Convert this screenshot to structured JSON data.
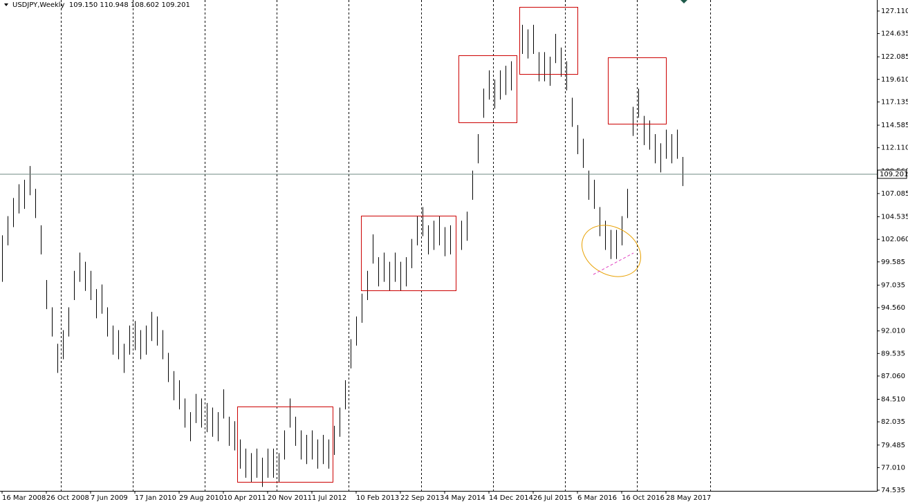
{
  "chart_data": {
    "type": "ohlc",
    "title": "USDJPY,Weekly  109.150 110.948 108.602 109.201",
    "color": "#000000",
    "current_price": 109.201,
    "categories": [
      "16 Mar 2008",
      null,
      null,
      null,
      null,
      null,
      null,
      null,
      "26 Oct 2008",
      null,
      null,
      null,
      null,
      null,
      null,
      null,
      "7 Jun 2009",
      null,
      null,
      null,
      null,
      null,
      null,
      null,
      "17 Jan 2010",
      null,
      null,
      null,
      null,
      null,
      null,
      null,
      "29 Aug 2010",
      null,
      null,
      null,
      null,
      null,
      null,
      null,
      "10 Apr 2011",
      null,
      null,
      null,
      null,
      null,
      null,
      null,
      "20 Nov 2011",
      null,
      null,
      null,
      null,
      null,
      null,
      null,
      "1 Jul 2012",
      null,
      null,
      null,
      null,
      null,
      null,
      null,
      "10 Feb 2013",
      null,
      null,
      null,
      null,
      null,
      null,
      null,
      "22 Sep 2013",
      null,
      null,
      null,
      null,
      null,
      null,
      null,
      "4 May 2014",
      null,
      null,
      null,
      null,
      null,
      null,
      null,
      "14 Dec 2014",
      null,
      null,
      null,
      null,
      null,
      null,
      null,
      "26 Jul 2015",
      null,
      null,
      null,
      null,
      null,
      null,
      null,
      "6 Mar 2016",
      null,
      null,
      null,
      null,
      null,
      null,
      null,
      "16 Oct 2016",
      null,
      null,
      null,
      null,
      null,
      null,
      null,
      "28 May 2017",
      null,
      null,
      null
    ],
    "high": [
      102.5,
      104.6,
      106.6,
      108.1,
      108.6,
      110.1,
      107.6,
      103.6,
      97.6,
      94.6,
      90.6,
      92.1,
      94.6,
      98.6,
      100.6,
      99.6,
      98.6,
      96.6,
      97.1,
      94.6,
      92.6,
      92.1,
      90.6,
      92.6,
      93.1,
      92.1,
      92.6,
      94.1,
      93.6,
      92.1,
      89.6,
      87.6,
      86.6,
      84.6,
      83.1,
      85.1,
      84.6,
      84.1,
      83.6,
      83.1,
      85.6,
      82.6,
      82.1,
      80.1,
      79.1,
      78.6,
      79.1,
      78.1,
      79.1,
      79.1,
      78.6,
      81.1,
      84.6,
      82.6,
      81.1,
      80.6,
      81.1,
      80.1,
      80.6,
      80.1,
      81.6,
      83.6,
      86.6,
      91.1,
      93.6,
      96.1,
      98.6,
      102.6,
      100.1,
      100.6,
      99.6,
      100.6,
      99.6,
      100.1,
      102.1,
      104.6,
      105.6,
      103.6,
      104.1,
      104.6,
      103.4,
      103.6,
      103.4,
      104.1,
      105.1,
      109.6,
      113.6,
      118.6,
      120.6,
      119.6,
      120.6,
      121.1,
      121.6,
      122.1,
      125.6,
      125.1,
      125.6,
      122.6,
      122.6,
      122.1,
      124.6,
      123.1,
      121.6,
      117.6,
      114.6,
      113.1,
      109.6,
      108.6,
      105.6,
      104.1,
      103.1,
      103.1,
      104.6,
      107.6,
      116.6,
      118.6,
      115.6,
      115.1,
      113.6,
      112.6,
      114.1,
      113.6,
      114.1,
      111.1
    ],
    "low": [
      97.4,
      101.4,
      103.4,
      104.9,
      105.4,
      106.9,
      104.4,
      100.4,
      94.4,
      91.4,
      87.4,
      88.9,
      91.4,
      95.4,
      97.4,
      96.4,
      95.4,
      93.4,
      93.9,
      91.4,
      89.4,
      88.9,
      87.4,
      89.4,
      89.9,
      88.9,
      89.4,
      90.9,
      90.4,
      88.9,
      86.4,
      84.4,
      83.4,
      81.4,
      79.9,
      81.9,
      81.4,
      80.9,
      80.4,
      79.9,
      82.4,
      79.4,
      78.9,
      76.9,
      75.9,
      75.4,
      75.9,
      74.9,
      75.9,
      75.9,
      75.4,
      77.9,
      81.4,
      79.4,
      77.9,
      77.4,
      77.9,
      76.9,
      77.4,
      76.9,
      78.4,
      80.4,
      83.4,
      87.9,
      90.4,
      92.9,
      95.4,
      99.4,
      96.9,
      97.4,
      96.4,
      97.4,
      96.4,
      96.9,
      98.9,
      101.4,
      102.4,
      100.4,
      100.9,
      101.4,
      100.2,
      100.4,
      100.2,
      100.9,
      101.9,
      106.4,
      110.4,
      115.4,
      117.4,
      116.4,
      117.4,
      117.9,
      118.4,
      118.9,
      122.4,
      121.9,
      122.4,
      119.4,
      119.4,
      118.9,
      121.4,
      119.9,
      118.4,
      114.4,
      111.4,
      109.9,
      106.4,
      105.4,
      102.4,
      100.9,
      99.9,
      99.9,
      101.4,
      104.4,
      113.4,
      115.4,
      112.4,
      111.9,
      110.4,
      109.4,
      110.9,
      110.4,
      110.9,
      107.9
    ],
    "ylim": [
      74.46,
      128.32
    ],
    "yticks": [
      {
        "value": 127.11,
        "label": "127.110"
      },
      {
        "value": 124.635,
        "label": "124.635"
      },
      {
        "value": 122.085,
        "label": "122.085"
      },
      {
        "value": 119.61,
        "label": "119.610"
      },
      {
        "value": 117.135,
        "label": "117.135"
      },
      {
        "value": 114.585,
        "label": "114.585"
      },
      {
        "value": 112.11,
        "label": "112.110"
      },
      {
        "value": 109.56,
        "label": "109.560"
      },
      {
        "value": 107.085,
        "label": "107.085"
      },
      {
        "value": 104.535,
        "label": "104.535"
      },
      {
        "value": 102.06,
        "label": "102.060"
      },
      {
        "value": 99.585,
        "label": "99.585"
      },
      {
        "value": 97.035,
        "label": "97.035"
      },
      {
        "value": 94.56,
        "label": "94.560"
      },
      {
        "value": 92.01,
        "label": "92.010"
      },
      {
        "value": 89.535,
        "label": "89.535"
      },
      {
        "value": 87.06,
        "label": "87.060"
      },
      {
        "value": 84.51,
        "label": "84.510"
      },
      {
        "value": 82.035,
        "label": "82.035"
      },
      {
        "value": 79.485,
        "label": "79.485"
      },
      {
        "value": 77.01,
        "label": "77.010"
      },
      {
        "value": 74.535,
        "label": "74.535"
      }
    ]
  }
}
